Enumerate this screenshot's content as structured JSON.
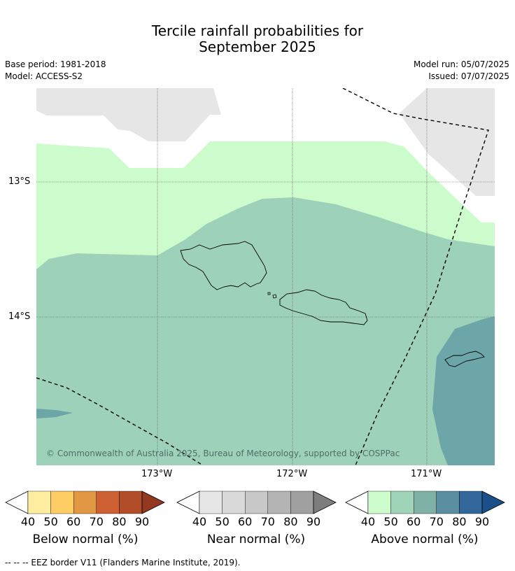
{
  "title": {
    "line1": "Tercile rainfall probabilities for",
    "line2": "September 2025"
  },
  "meta_left": {
    "base_period": "Base period: 1981-2018",
    "model": "Model: ACCESS-S2"
  },
  "meta_right": {
    "model_run": "Model run: 05/07/2025",
    "issued": "Issued: 07/07/2025"
  },
  "map": {
    "lat_labels": [
      "13°S",
      "14°S"
    ],
    "lon_labels": [
      "173°W",
      "172°W",
      "171°W"
    ],
    "copyright": "© Commonwealth of Australia 2025, Bureau of Meteorology, supported by COSPPac",
    "colors": {
      "above_50": "#ccfccb",
      "above_60": "#9ed1ba",
      "above_70": "#6da6a8",
      "near_40": "#e6e6e6"
    }
  },
  "colorbars": [
    {
      "title": "Below normal (%)",
      "ticks": [
        "40",
        "50",
        "60",
        "70",
        "80",
        "90"
      ],
      "colors": [
        "#ffffff",
        "#ffeda0",
        "#fecd64",
        "#e29744",
        "#cd6134",
        "#b14d28",
        "#923920"
      ]
    },
    {
      "title": "Near normal (%)",
      "ticks": [
        "40",
        "50",
        "60",
        "70",
        "80",
        "90"
      ],
      "colors": [
        "#ffffff",
        "#e6e6e6",
        "#d9d9d9",
        "#c8c8c8",
        "#b4b4b4",
        "#a0a0a0",
        "#7d7d7d"
      ]
    },
    {
      "title": "Above normal (%)",
      "ticks": [
        "40",
        "50",
        "60",
        "70",
        "80",
        "90"
      ],
      "colors": [
        "#ffffff",
        "#ccfccb",
        "#a0d4b8",
        "#7fb1a6",
        "#5b8ea0",
        "#336699",
        "#1a4f8a"
      ]
    }
  ],
  "footnote": "--  --  -- EEZ border V11 (Flanders Marine Institute, 2019)."
}
